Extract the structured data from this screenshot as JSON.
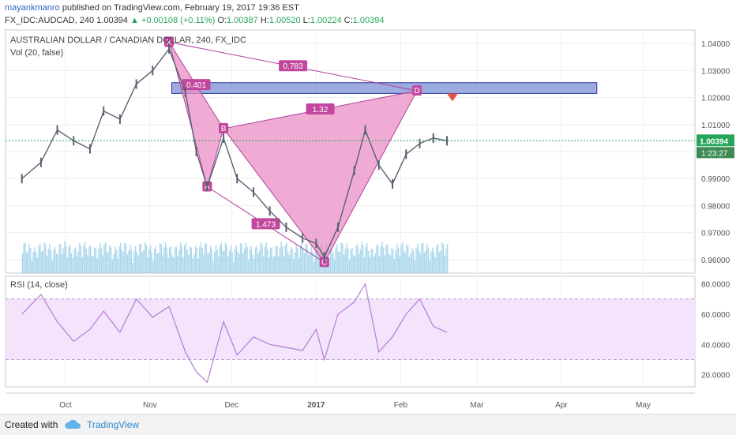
{
  "header": {
    "author": "mayankmanro",
    "published": "published on TradingView.com, February 19, 2017 19:36 EST",
    "symbol": "FX_IDC:AUDCAD, 240",
    "last": "1.00394",
    "change": "+0.00108 (+0.11%)",
    "open_label": "O:",
    "open": "1.00387",
    "high_label": "H:",
    "high": "1.00520",
    "low_label": "L:",
    "low": "1.00224",
    "close_label": "C:",
    "close": "1.00394"
  },
  "footer": {
    "created_with": "Created with",
    "brand": "TradingView"
  },
  "colors": {
    "candle": "#5a6270",
    "volume": "#8fcbe6",
    "pattern_fill": "#e98fc6",
    "pattern_stroke": "#b040a0",
    "zone_fill": "#7b8fd6",
    "zone_stroke": "#2a3a9a",
    "rsi_line": "#b57cd6",
    "rsi_band": "#f3e3fb",
    "price_line": "#26a65b",
    "arrow": "#e05546"
  },
  "chart_data": [
    {
      "type": "line",
      "title": "AUSTRALIAN DOLLAR / CANADIAN DOLLAR, 240, FX_IDC",
      "subtitle": "Vol (20, false)",
      "ylim": [
        0.955,
        1.045
      ],
      "yticks": [
        "1.04000",
        "1.03000",
        "1.02000",
        "1.01000",
        "1.00000",
        "0.99000",
        "0.98000",
        "0.97000",
        "0.96000"
      ],
      "xticks": [
        "Oct",
        "Nov",
        "Dec",
        "2017",
        "Feb",
        "Mar",
        "Apr",
        "May"
      ],
      "last_price_label": "1.00394",
      "countdown_label": "1:23:27",
      "pattern": {
        "points": [
          {
            "label": "X",
            "x": "2016-11-08",
            "y": 1.0405
          },
          {
            "label": "A",
            "x": "2016-11-22",
            "y": 0.987
          },
          {
            "label": "B",
            "x": "2016-11-28",
            "y": 1.0085
          },
          {
            "label": "C",
            "x": "2017-01-04",
            "y": 0.959
          },
          {
            "label": "D",
            "x": "2017-02-07",
            "y": 1.0225
          }
        ],
        "ratios": [
          {
            "label": "0.401",
            "from": "X",
            "to": "B"
          },
          {
            "label": "1.473",
            "from": "A",
            "to": "C"
          },
          {
            "label": "1.32",
            "from": "B",
            "to": "D"
          },
          {
            "label": "0.783",
            "from": "X",
            "to": "D"
          }
        ]
      },
      "zone": {
        "y_top": 1.0255,
        "y_bottom": 1.0215,
        "x_start": "2016-11-09",
        "x_end": "2017-04-14"
      },
      "series": [
        {
          "name": "AUDCAD",
          "x": [
            "2016-09-15",
            "2016-09-22",
            "2016-09-28",
            "2016-10-04",
            "2016-10-10",
            "2016-10-15",
            "2016-10-21",
            "2016-10-27",
            "2016-11-02",
            "2016-11-08",
            "2016-11-14",
            "2016-11-18",
            "2016-11-22",
            "2016-11-28",
            "2016-12-03",
            "2016-12-09",
            "2016-12-15",
            "2016-12-21",
            "2016-12-27",
            "2017-01-01",
            "2017-01-04",
            "2017-01-09",
            "2017-01-15",
            "2017-01-19",
            "2017-01-24",
            "2017-01-29",
            "2017-02-03",
            "2017-02-08",
            "2017-02-13",
            "2017-02-18"
          ],
          "values": [
            0.99,
            0.996,
            1.008,
            1.004,
            1.001,
            1.015,
            1.012,
            1.025,
            1.03,
            1.038,
            1.022,
            1.0,
            0.987,
            1.005,
            0.99,
            0.985,
            0.978,
            0.972,
            0.968,
            0.966,
            0.961,
            0.972,
            0.993,
            1.008,
            0.995,
            0.988,
            0.999,
            1.003,
            1.005,
            1.004
          ]
        }
      ]
    },
    {
      "type": "line",
      "title": "RSI (14, close)",
      "ylim": [
        12,
        85
      ],
      "yticks": [
        "80.0000",
        "60.0000",
        "40.0000",
        "20.0000"
      ],
      "bands": [
        30,
        70
      ],
      "series": [
        {
          "name": "RSI",
          "x": [
            "2016-09-15",
            "2016-09-22",
            "2016-09-28",
            "2016-10-04",
            "2016-10-10",
            "2016-10-15",
            "2016-10-21",
            "2016-10-27",
            "2016-11-02",
            "2016-11-08",
            "2016-11-14",
            "2016-11-18",
            "2016-11-22",
            "2016-11-28",
            "2016-12-03",
            "2016-12-09",
            "2016-12-15",
            "2016-12-21",
            "2016-12-27",
            "2017-01-01",
            "2017-01-04",
            "2017-01-09",
            "2017-01-15",
            "2017-01-19",
            "2017-01-24",
            "2017-01-29",
            "2017-02-03",
            "2017-02-08",
            "2017-02-13",
            "2017-02-18"
          ],
          "values": [
            60,
            73,
            55,
            42,
            50,
            62,
            48,
            70,
            58,
            65,
            35,
            22,
            15,
            55,
            33,
            45,
            40,
            38,
            36,
            50,
            30,
            60,
            68,
            80,
            35,
            45,
            60,
            70,
            52,
            48
          ]
        }
      ]
    }
  ]
}
